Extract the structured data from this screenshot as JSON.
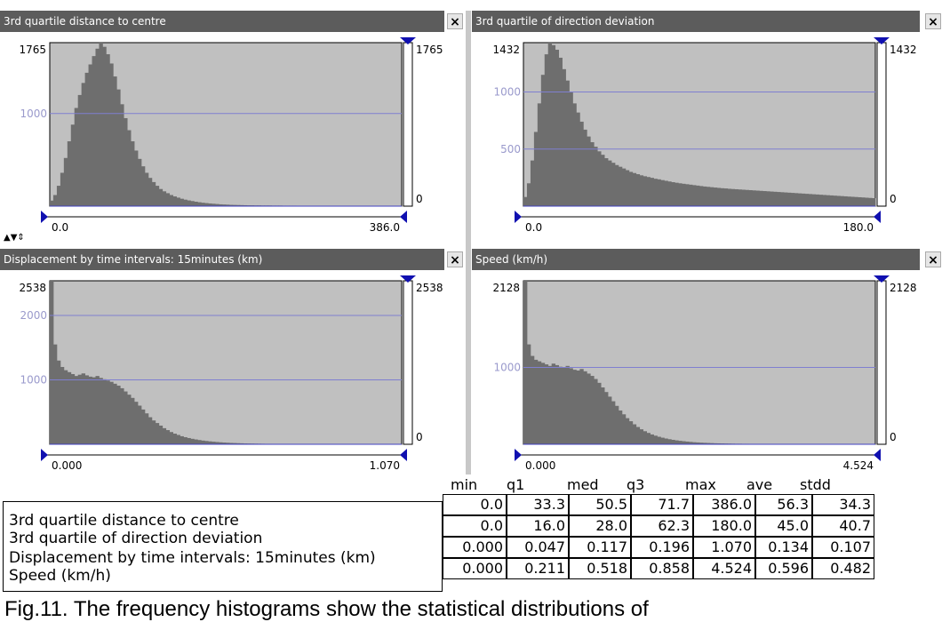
{
  "panels": [
    {
      "title": "3rd quartile distance to centre",
      "max_label": "1765",
      "right_max": "1765",
      "right_min": "0",
      "grid_labels": [
        "1000"
      ],
      "x_min": "0.0",
      "x_max": "386.0"
    },
    {
      "title": "3rd quartile of direction deviation",
      "max_label": "1432",
      "right_max": "1432",
      "right_min": "0",
      "grid_labels": [
        "1000",
        "500"
      ],
      "x_min": "0.0",
      "x_max": "180.0"
    },
    {
      "title": "Displacement by time intervals: 15minutes (km)",
      "max_label": "2538",
      "right_max": "2538",
      "right_min": "0",
      "grid_labels": [
        "2000",
        "1000"
      ],
      "x_min": "0.000",
      "x_max": "1.070"
    },
    {
      "title": "Speed (km/h)",
      "max_label": "2128",
      "right_max": "2128",
      "right_min": "0",
      "grid_labels": [
        "1000"
      ],
      "x_min": "0.000",
      "x_max": "4.524"
    }
  ],
  "close_glyph": "×",
  "colors": {
    "plot_bg": "#c0c0c0",
    "bar": "#6e6e6e",
    "grid": "#7f7fd0",
    "grid_label": "#9a9acc",
    "titlebar": "#5c5c5c",
    "marker": "#1010b0"
  },
  "stats": {
    "headers": [
      "min",
      "q1",
      "med",
      "q3",
      "max",
      "ave",
      "stdd"
    ],
    "rows": [
      {
        "label": "3rd quartile distance to centre",
        "values": [
          "0.0",
          "33.3",
          "50.5",
          "71.7",
          "386.0",
          "56.3",
          "34.3"
        ]
      },
      {
        "label": "3rd quartile of direction deviation",
        "values": [
          "0.0",
          "16.0",
          "28.0",
          "62.3",
          "180.0",
          "45.0",
          "40.7"
        ]
      },
      {
        "label": "Displacement by time intervals: 15minutes (km)",
        "values": [
          "0.000",
          "0.047",
          "0.117",
          "0.196",
          "1.070",
          "0.134",
          "0.107"
        ]
      },
      {
        "label": "Speed (km/h)",
        "values": [
          "0.000",
          "0.211",
          "0.518",
          "0.858",
          "4.524",
          "0.596",
          "0.482"
        ]
      }
    ]
  },
  "caption": "Fig.11. The frequency histograms show the statistical distributions of",
  "chart_data": [
    {
      "type": "bar",
      "title": "3rd quartile distance to centre",
      "xlim": [
        0.0,
        386.0
      ],
      "ylim": [
        0,
        1765
      ],
      "grid": true,
      "bins": 100,
      "values": [
        60,
        120,
        220,
        360,
        520,
        700,
        880,
        1060,
        1200,
        1330,
        1440,
        1530,
        1620,
        1700,
        1765,
        1720,
        1640,
        1540,
        1400,
        1260,
        1100,
        950,
        820,
        700,
        600,
        510,
        430,
        360,
        305,
        260,
        220,
        185,
        160,
        140,
        120,
        105,
        92,
        80,
        70,
        62,
        55,
        48,
        42,
        37,
        33,
        29,
        26,
        23,
        20,
        18,
        16,
        14,
        13,
        12,
        11,
        10,
        9,
        9,
        8,
        8,
        7,
        7,
        7,
        6,
        6,
        6,
        5,
        5,
        5,
        5,
        4,
        4,
        4,
        4,
        4,
        3,
        3,
        3,
        3,
        3,
        3,
        3,
        2,
        2,
        2,
        2,
        2,
        2,
        2,
        2,
        2,
        2,
        2,
        1,
        1,
        1,
        1,
        1,
        1,
        1
      ]
    },
    {
      "type": "bar",
      "title": "3rd quartile of direction deviation",
      "xlim": [
        0.0,
        180.0
      ],
      "ylim": [
        0,
        1432
      ],
      "grid": true,
      "bins": 100,
      "values": [
        80,
        200,
        400,
        650,
        900,
        1150,
        1330,
        1432,
        1410,
        1370,
        1300,
        1200,
        1100,
        1000,
        900,
        820,
        740,
        670,
        610,
        560,
        520,
        480,
        450,
        420,
        400,
        380,
        360,
        345,
        330,
        315,
        300,
        290,
        280,
        270,
        262,
        255,
        248,
        240,
        235,
        228,
        222,
        216,
        210,
        205,
        200,
        196,
        192,
        188,
        184,
        180,
        176,
        172,
        169,
        166,
        163,
        160,
        157,
        155,
        152,
        150,
        148,
        146,
        144,
        142,
        140,
        138,
        136,
        134,
        132,
        130,
        128,
        126,
        124,
        122,
        120,
        118,
        116,
        114,
        112,
        110,
        108,
        106,
        104,
        102,
        100,
        98,
        96,
        94,
        92,
        90,
        88,
        86,
        84,
        82,
        80,
        78,
        76,
        74,
        72,
        70
      ]
    },
    {
      "type": "bar",
      "title": "Displacement by time intervals: 15minutes (km)",
      "xlim": [
        0.0,
        1.07
      ],
      "ylim": [
        0,
        2538
      ],
      "grid": true,
      "bins": 100,
      "values": [
        2538,
        1550,
        1300,
        1200,
        1150,
        1120,
        1090,
        1060,
        1080,
        1100,
        1070,
        1050,
        1040,
        1060,
        1030,
        1010,
        990,
        970,
        940,
        910,
        870,
        820,
        770,
        720,
        660,
        600,
        540,
        480,
        420,
        370,
        330,
        290,
        250,
        220,
        190,
        165,
        145,
        125,
        110,
        97,
        85,
        75,
        66,
        58,
        51,
        45,
        40,
        35,
        31,
        27,
        24,
        21,
        19,
        17,
        15,
        13,
        12,
        11,
        10,
        9,
        8,
        7,
        7,
        6,
        6,
        5,
        5,
        5,
        4,
        4,
        4,
        4,
        3,
        3,
        3,
        3,
        3,
        3,
        2,
        2,
        2,
        2,
        2,
        2,
        2,
        2,
        2,
        2,
        2,
        1,
        1,
        1,
        1,
        1,
        1,
        1,
        1,
        1,
        1,
        1
      ]
    },
    {
      "type": "bar",
      "title": "Speed (km/h)",
      "xlim": [
        0.0,
        4.524
      ],
      "ylim": [
        0,
        2128
      ],
      "grid": true,
      "bins": 100,
      "values": [
        2128,
        1300,
        1150,
        1100,
        1080,
        1060,
        1040,
        1020,
        1050,
        1030,
        1010,
        1000,
        1020,
        990,
        970,
        960,
        980,
        950,
        920,
        890,
        850,
        800,
        740,
        680,
        620,
        560,
        500,
        440,
        390,
        340,
        300,
        260,
        225,
        195,
        170,
        148,
        128,
        112,
        98,
        86,
        75,
        66,
        58,
        51,
        45,
        40,
        35,
        31,
        27,
        24,
        21,
        19,
        17,
        15,
        13,
        12,
        11,
        10,
        9,
        8,
        7,
        7,
        6,
        6,
        5,
        5,
        5,
        4,
        4,
        4,
        4,
        3,
        3,
        3,
        3,
        3,
        3,
        2,
        2,
        2,
        2,
        2,
        2,
        2,
        2,
        2,
        2,
        2,
        1,
        1,
        1,
        1,
        1,
        1,
        1,
        1,
        1,
        1,
        1,
        1
      ]
    }
  ]
}
